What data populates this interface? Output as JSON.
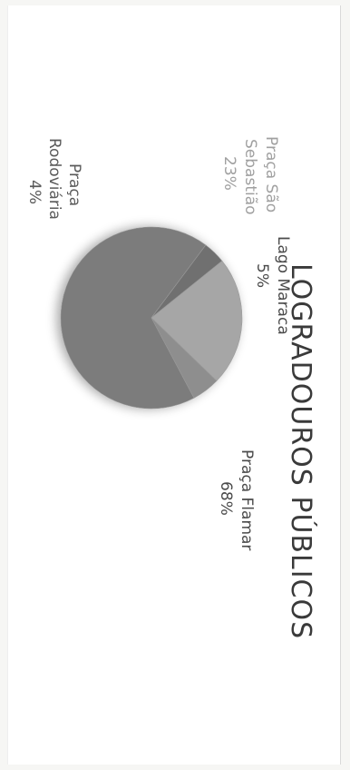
{
  "colors": {
    "page": "#ffffff",
    "text_dark": "#3a3a3a",
    "text_light": "#9a9a9a",
    "slice_flamar": "#7b7b7b",
    "slice_sebastiao": "#a6a6a6",
    "slice_maraca": "#8e8e8e",
    "slice_rodoviaria": "#6f6f6f"
  },
  "chart_data": {
    "type": "pie",
    "title": "LOGRADOUROS PÚBLICOS",
    "slices": [
      {
        "label": "Praça Flamar",
        "percent_label": "68%",
        "value": 68
      },
      {
        "label": "Praça Rodoviária",
        "percent_label": "4%",
        "value": 4
      },
      {
        "label": "Praça São Sebastião",
        "percent_label": "23%",
        "value": 23
      },
      {
        "label": "Lago Maraca",
        "percent_label": "5%",
        "value": 5
      }
    ]
  }
}
